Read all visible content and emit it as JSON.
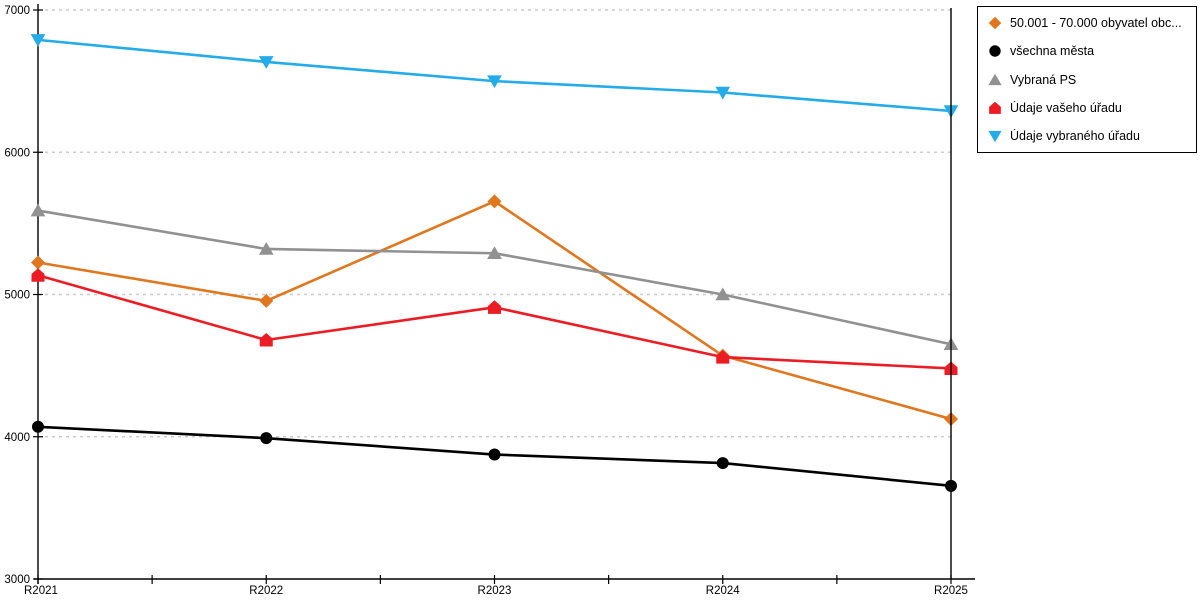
{
  "chart_data": {
    "type": "line",
    "title": "",
    "xlabel": "",
    "ylabel": "",
    "categories": [
      "R2021",
      "R2022",
      "R2023",
      "R2024",
      "R2025"
    ],
    "series": [
      {
        "name": "50.001 - 70.000 obyvatel obc...",
        "marker": "diamond",
        "color": "#e0761e",
        "values": [
          5225,
          4955,
          5655,
          4570,
          4125
        ]
      },
      {
        "name": "všechna města",
        "marker": "circle",
        "color": "#000000",
        "values": [
          4070,
          3990,
          3875,
          3815,
          3655
        ]
      },
      {
        "name": "Vybraná PS",
        "marker": "triangle-up",
        "color": "#919191",
        "values": [
          5590,
          5320,
          5290,
          5000,
          4650
        ]
      },
      {
        "name": "Údaje vašeho úřadu",
        "marker": "pentagon",
        "color": "#ec1c24",
        "values": [
          5135,
          4680,
          4910,
          4560,
          4480
        ]
      },
      {
        "name": "Údaje vybraného úřadu",
        "marker": "triangle-down",
        "color": "#24ace8",
        "values": [
          6790,
          6635,
          6500,
          6420,
          6290
        ]
      }
    ],
    "ylim": [
      3000,
      7000
    ],
    "yticks": [
      3000,
      4000,
      5000,
      6000,
      7000
    ],
    "grid": "horizontal-dotted",
    "legend_position": "top-right",
    "colors": {
      "grid": "#cccccc",
      "axis": "#000000",
      "tick_label": "#000000",
      "legend_border": "#000000",
      "background": "#ffffff"
    }
  }
}
